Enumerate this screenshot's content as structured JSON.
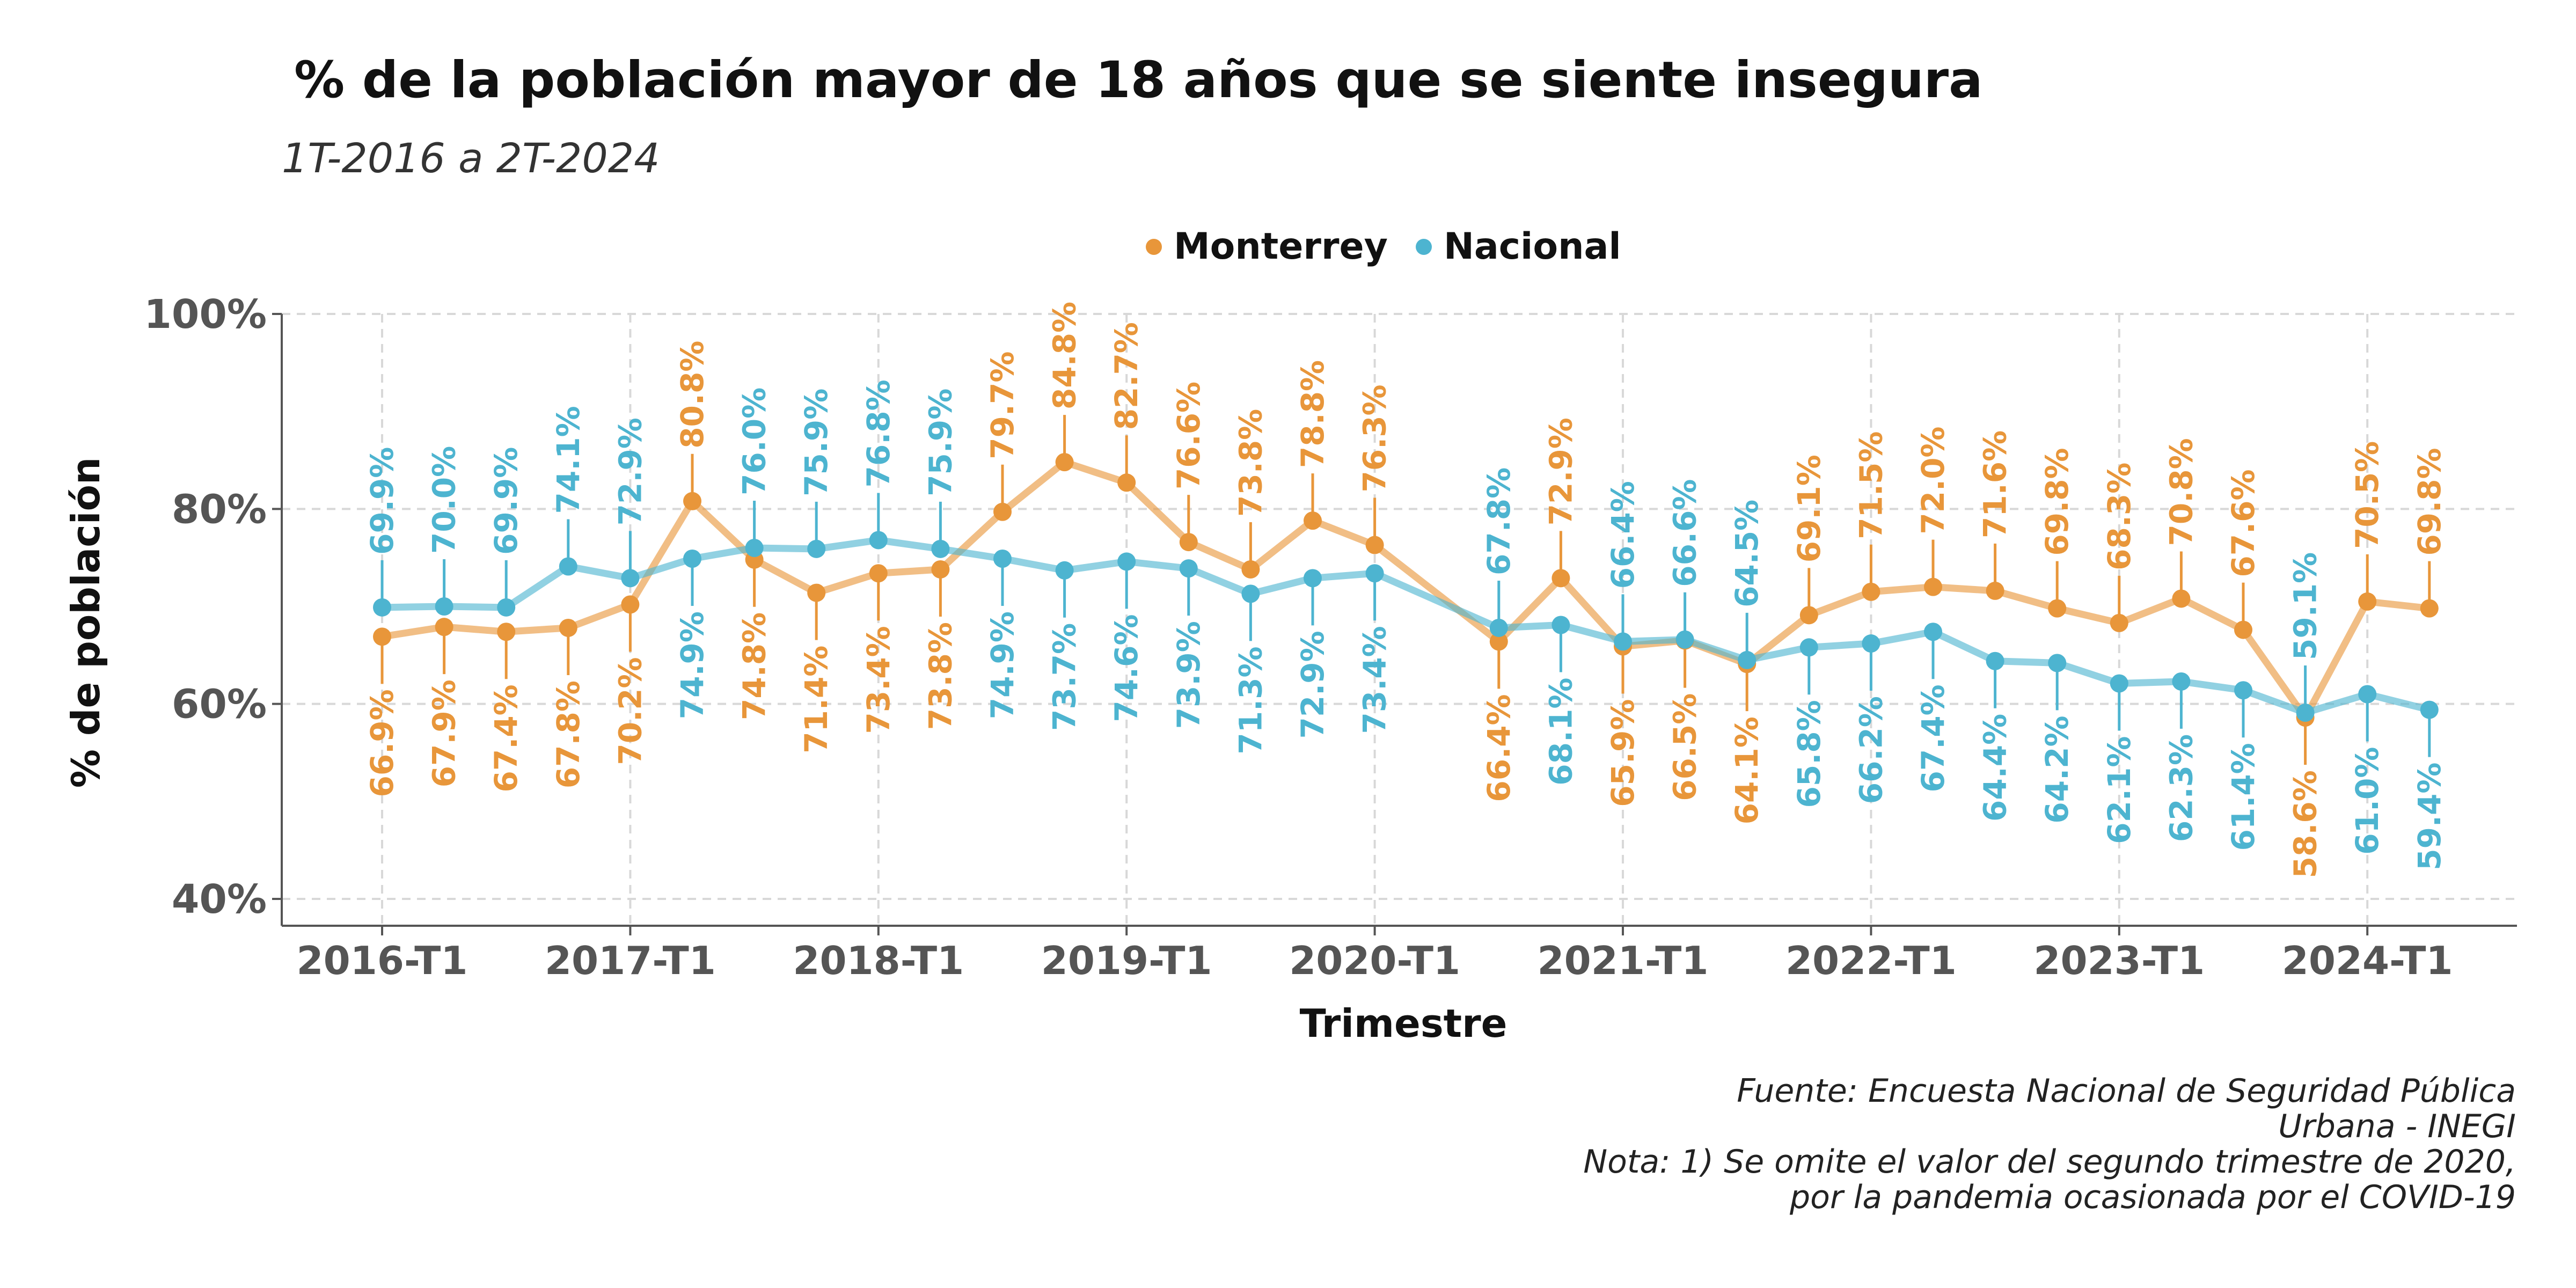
{
  "title": "% de la población mayor de 18 años que se siente insegura",
  "subtitle": "1T-2016 a 2T-2024",
  "legend": [
    {
      "name": "Monterrey",
      "color": "#E8963A"
    },
    {
      "name": "Nacional",
      "color": "#4DB4D0"
    }
  ],
  "source_lines": [
    "Fuente: Encuesta Nacional de Seguridad Pública",
    "Urbana - INEGI",
    "Nota: 1) Se omite el valor del segundo trimestre de 2020,",
    "por la pandemia ocasionada por el COVID-19"
  ],
  "chart_data": {
    "type": "line",
    "xlabel": "Trimestre",
    "ylabel": "% de población",
    "ylim": [
      40,
      100
    ],
    "y_ticks": [
      "40%",
      "60%",
      "80%",
      "100%"
    ],
    "x_ticks": [
      "2016-T1",
      "2017-T1",
      "2018-T1",
      "2019-T1",
      "2020-T1",
      "2021-T1",
      "2022-T1",
      "2023-T1",
      "2024-T1"
    ],
    "grid": true,
    "legend_position": "top",
    "x": [
      "2016-T1",
      "2016-T2",
      "2016-T3",
      "2016-T4",
      "2017-T1",
      "2017-T2",
      "2017-T3",
      "2017-T4",
      "2018-T1",
      "2018-T2",
      "2018-T3",
      "2018-T4",
      "2019-T1",
      "2019-T2",
      "2019-T3",
      "2019-T4",
      "2020-T1",
      "2020-T3",
      "2020-T4",
      "2021-T1",
      "2021-T2",
      "2021-T3",
      "2021-T4",
      "2022-T1",
      "2022-T2",
      "2022-T3",
      "2022-T4",
      "2023-T1",
      "2023-T2",
      "2023-T3",
      "2023-T4",
      "2024-T1",
      "2024-T2"
    ],
    "series": [
      {
        "name": "Monterrey",
        "color": "#E8963A",
        "values": [
          66.9,
          67.9,
          67.4,
          67.8,
          70.2,
          80.8,
          74.8,
          71.4,
          73.4,
          73.8,
          79.7,
          84.8,
          82.7,
          76.6,
          73.8,
          78.8,
          76.3,
          66.4,
          72.9,
          65.9,
          66.5,
          64.1,
          69.1,
          71.5,
          72.0,
          71.6,
          69.8,
          68.3,
          70.8,
          67.6,
          58.6,
          70.5,
          69.8
        ]
      },
      {
        "name": "Nacional",
        "color": "#4DB4D0",
        "values": [
          69.9,
          70.0,
          69.9,
          74.1,
          72.9,
          74.9,
          76.0,
          75.9,
          76.8,
          75.9,
          74.9,
          73.7,
          74.6,
          73.9,
          71.3,
          72.9,
          73.4,
          67.8,
          68.1,
          66.4,
          66.6,
          64.5,
          65.8,
          66.2,
          67.4,
          64.4,
          64.2,
          62.1,
          62.3,
          61.4,
          59.1,
          61.0,
          59.4
        ]
      }
    ]
  }
}
